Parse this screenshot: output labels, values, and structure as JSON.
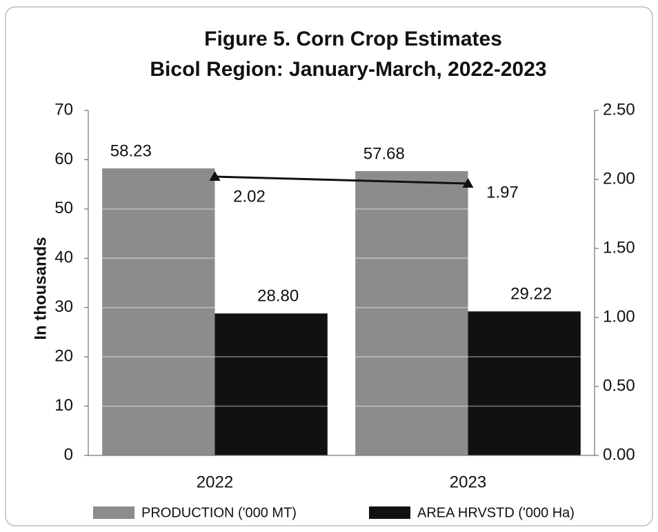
{
  "chart_data": {
    "type": "bar",
    "title": "Figure 5. Corn Crop Estimates",
    "subtitle": "Bicol Region: January-March, 2022-2023",
    "y_label": "In thousands",
    "categories": [
      "2022",
      "2023"
    ],
    "series": [
      {
        "name": "PRODUCTION ('000 MT)",
        "color": "#8c8c8c",
        "values": [
          58.23,
          57.68
        ]
      },
      {
        "name": "AREA HRVSTD ('000 Ha)",
        "color": "#111111",
        "values": [
          28.8,
          29.22
        ],
        "value_labels": [
          "28.80",
          "29.22"
        ]
      },
      {
        "type": "line",
        "axis": "y2",
        "color": "#111111",
        "values": [
          2.02,
          1.97
        ]
      }
    ],
    "ylim": [
      0,
      70
    ],
    "yticks": [
      0,
      10,
      20,
      30,
      40,
      50,
      60,
      70
    ],
    "y2lim": [
      0,
      2.5
    ],
    "y2ticks": [
      {
        "value": 0,
        "label": "0.00"
      },
      {
        "value": 0.5,
        "label": "0.50"
      },
      {
        "value": 1,
        "label": "1.00"
      },
      {
        "value": 1.5,
        "label": "1.50"
      },
      {
        "value": 2,
        "label": "2.00"
      },
      {
        "value": 2.5,
        "label": "2.50"
      }
    ],
    "grid": true,
    "legend": "bottom"
  }
}
